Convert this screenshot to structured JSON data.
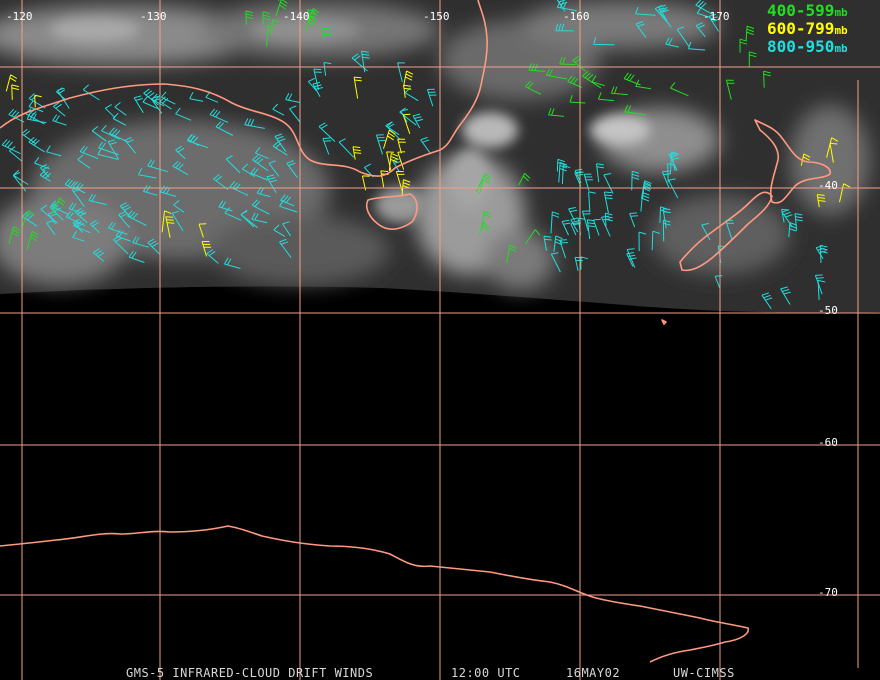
{
  "title": "GMS-5 INFRARED-CLOUD DRIFT WINDS",
  "time": "12:00 UTC",
  "date": "16MAY02",
  "source": "UW-CIMSS",
  "legend": [
    {
      "range": "400-599",
      "unit": "mb",
      "color": "#22dd22"
    },
    {
      "range": "600-799",
      "unit": "mb",
      "color": "#ffff00"
    },
    {
      "range": "800-950",
      "unit": "mb",
      "color": "#22dddd"
    }
  ],
  "longitude_labels": [
    "-120",
    "-130",
    "-140",
    "-150",
    "-160",
    "-170"
  ],
  "latitude_labels": [
    "-40",
    "-50",
    "-60",
    "-70"
  ],
  "colors": {
    "grid": "#f0a088",
    "coast": "#ff9980",
    "background": "#000000",
    "low_level": "#22dddd",
    "mid_level": "#ffff00",
    "upper_level": "#22dd22"
  }
}
